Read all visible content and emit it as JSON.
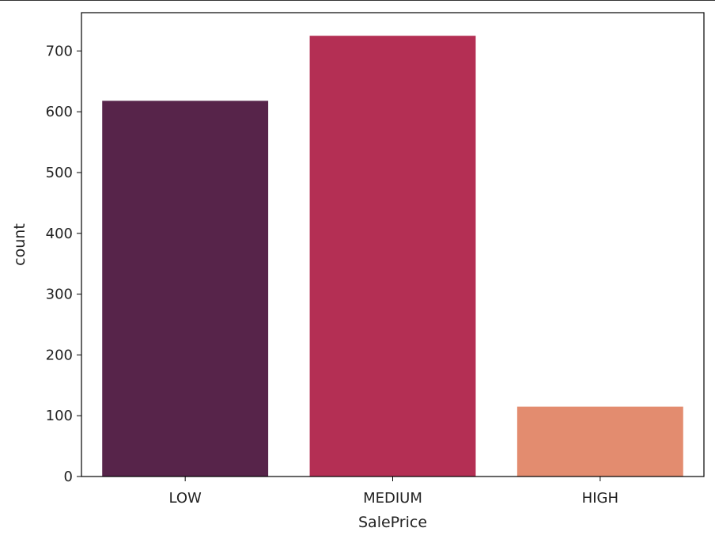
{
  "chart_data": {
    "type": "bar",
    "categories": [
      "LOW",
      "MEDIUM",
      "HIGH"
    ],
    "values": [
      618,
      725,
      115
    ],
    "colors": [
      "#57244a",
      "#b42f54",
      "#e38c6f"
    ],
    "xlabel": "SalePrice",
    "ylabel": "count",
    "ylim": [
      0,
      763
    ],
    "yticks": [
      0,
      100,
      200,
      300,
      400,
      500,
      600,
      700
    ],
    "grid": false,
    "legend": "none"
  }
}
